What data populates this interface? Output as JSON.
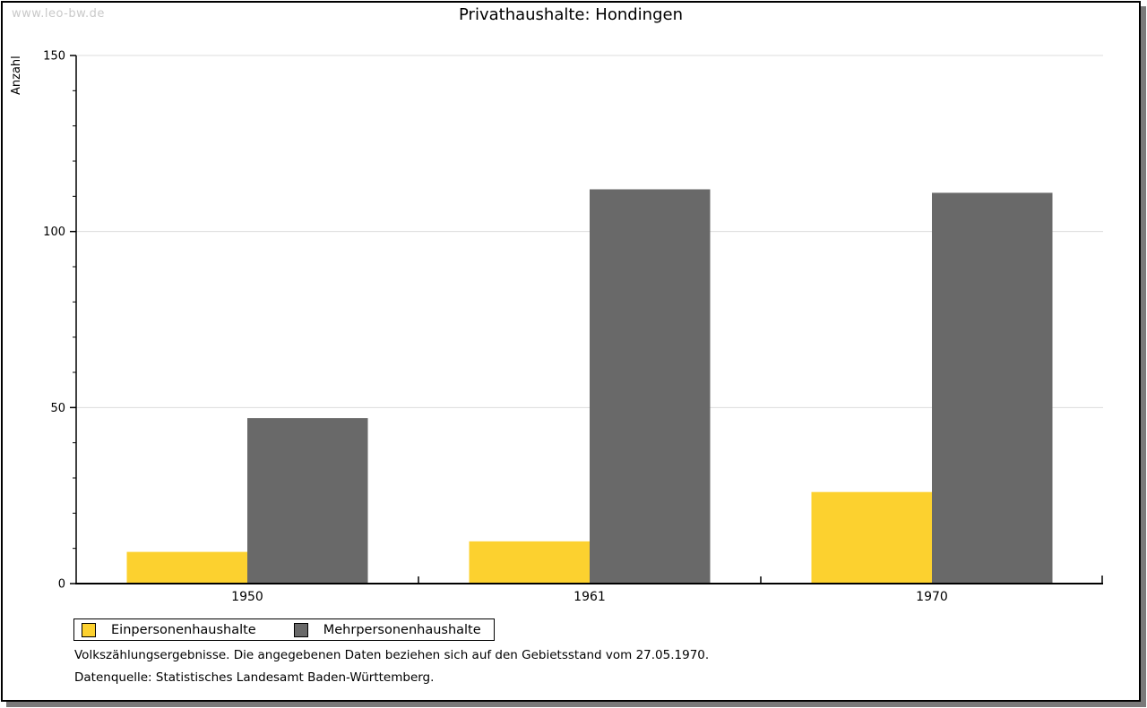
{
  "watermark": "www.leo-bw.de",
  "header": {
    "title": "Privathaushalte: Hondingen"
  },
  "y_axis": {
    "label": "Anzahl"
  },
  "legend": {
    "items": [
      {
        "label": "Einpersonenhaushalte",
        "color": "#FCD12F"
      },
      {
        "label": "Mehrpersonenhaushalte",
        "color": "#696969"
      }
    ]
  },
  "footnotes": [
    "Volkszählungsergebnisse. Die angegebenen Daten beziehen sich auf den Gebietsstand vom 27.05.1970.",
    "Datenquelle: Statistisches Landesamt Baden-Württemberg."
  ],
  "chart_data": {
    "type": "bar",
    "title": "Privathaushalte: Hondingen",
    "xlabel": "",
    "ylabel": "Anzahl",
    "categories": [
      "1950",
      "1961",
      "1970"
    ],
    "series": [
      {
        "name": "Einpersonenhaushalte",
        "color": "#FCD12F",
        "values": [
          9,
          12,
          26
        ]
      },
      {
        "name": "Mehrpersonenhaushalte",
        "color": "#696969",
        "values": [
          47,
          112,
          111
        ]
      }
    ],
    "ylim": [
      0,
      150
    ],
    "y_major_ticks": [
      0,
      50,
      100,
      150
    ],
    "y_minor_step": 10,
    "grid": true,
    "grid_color": "#dcdcdc",
    "axis_color": "#000000",
    "legend_position": "bottom-left"
  }
}
